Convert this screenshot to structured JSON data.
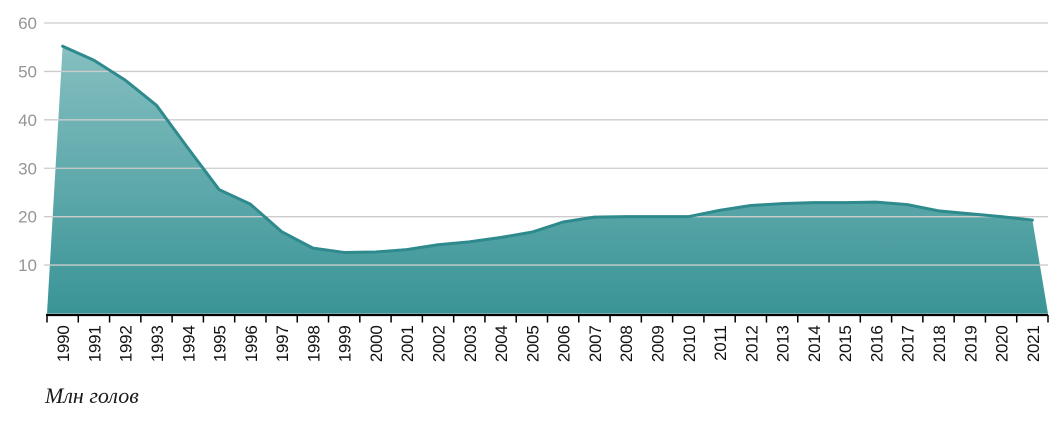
{
  "chart_data": {
    "type": "area",
    "title": "",
    "caption": "Млн голов",
    "categories": [
      "1990",
      "1991",
      "1992",
      "1993",
      "1994",
      "1995",
      "1996",
      "1997",
      "1998",
      "1999",
      "2000",
      "2001",
      "2002",
      "2003",
      "2004",
      "2005",
      "2006",
      "2007",
      "2008",
      "2009",
      "2010",
      "2011",
      "2012",
      "2013",
      "2014",
      "2015",
      "2016",
      "2017",
      "2018",
      "2019",
      "2020",
      "2021"
    ],
    "values": [
      55.2,
      52.3,
      48.2,
      43.0,
      34.2,
      25.6,
      22.6,
      16.9,
      13.5,
      12.6,
      12.7,
      13.2,
      14.2,
      14.8,
      15.7,
      16.8,
      18.9,
      19.9,
      20.0,
      20.0,
      20.0,
      21.3,
      22.3,
      22.7,
      22.9,
      22.9,
      23.0,
      22.5,
      21.2,
      20.6,
      20.0,
      19.3
    ],
    "xlabel": "",
    "ylabel": "",
    "ylim": [
      0,
      60
    ],
    "yticks": [
      10,
      20,
      30,
      40,
      50,
      60
    ],
    "grid": true,
    "legend": "none",
    "x_label_rotation": -90,
    "colors": {
      "line": "#2e8a8c",
      "fill_top": "#85bfc1",
      "fill_bottom": "#3a9496",
      "grid": "#cccccc",
      "axis": "#000000",
      "y_label": "#959595",
      "x_label": "#111111",
      "background": "#ffffff"
    }
  }
}
